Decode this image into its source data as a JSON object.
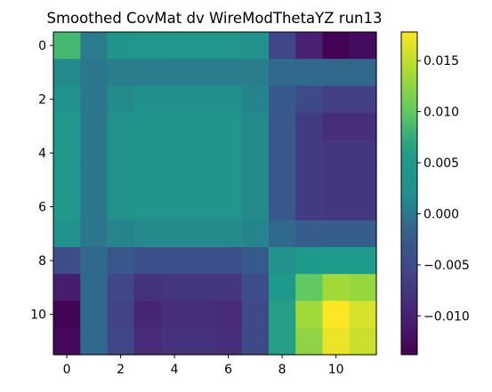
{
  "chart_data": {
    "type": "heatmap",
    "title": "Smoothed CovMat dv WireModThetaYZ run13",
    "xlabel": "",
    "ylabel": "",
    "x_ticks": [
      "0",
      "2",
      "4",
      "6",
      "8",
      "10"
    ],
    "y_ticks": [
      "0",
      "2",
      "4",
      "6",
      "8",
      "10"
    ],
    "colorbar_ticks": [
      "0.015",
      "0.010",
      "0.005",
      "0.000",
      "−0.005",
      "−0.010"
    ],
    "colorbar_tick_values": [
      0.015,
      0.01,
      0.005,
      0.0,
      -0.005,
      -0.01
    ],
    "vmin": -0.0138,
    "vmax": 0.0178,
    "colormap": "viridis",
    "values": [
      [
        0.0085,
        0.0005,
        0.0035,
        0.005,
        0.0045,
        0.0045,
        0.0045,
        0.0025,
        -0.0055,
        -0.01,
        -0.0135,
        -0.0125
      ],
      [
        0.0015,
        0.0,
        0.0005,
        0.0005,
        0.0005,
        0.0005,
        0.0005,
        0.0005,
        -0.001,
        -0.001,
        -0.001,
        -0.001
      ],
      [
        0.003,
        0.0,
        0.0015,
        0.002,
        0.002,
        0.002,
        0.002,
        0.001,
        -0.0025,
        -0.005,
        -0.0065,
        -0.0065
      ],
      [
        0.0045,
        0.0,
        0.0025,
        0.0035,
        0.0035,
        0.0035,
        0.0035,
        0.0015,
        -0.003,
        -0.007,
        -0.0085,
        -0.0085
      ],
      [
        0.005,
        0.0,
        0.0025,
        0.0035,
        0.0035,
        0.0035,
        0.0035,
        0.0015,
        -0.003,
        -0.007,
        -0.0075,
        -0.0075
      ],
      [
        0.005,
        0.0,
        0.0025,
        0.0035,
        0.0035,
        0.0035,
        0.0035,
        0.0015,
        -0.003,
        -0.007,
        -0.0075,
        -0.0075
      ],
      [
        0.005,
        0.0,
        0.0025,
        0.0035,
        0.0035,
        0.0035,
        0.0035,
        0.0015,
        -0.003,
        -0.007,
        -0.0075,
        -0.0075
      ],
      [
        0.0025,
        0.0,
        0.001,
        0.0015,
        0.0015,
        0.0015,
        0.0015,
        0.001,
        -0.001,
        -0.002,
        -0.002,
        -0.002
      ],
      [
        -0.0045,
        -0.001,
        -0.003,
        -0.004,
        -0.004,
        -0.004,
        -0.004,
        -0.0025,
        0.0025,
        0.0055,
        0.006,
        0.006
      ],
      [
        -0.0105,
        -0.001,
        -0.0055,
        -0.008,
        -0.0075,
        -0.0075,
        -0.0075,
        -0.0045,
        0.0055,
        0.01,
        0.0135,
        0.013
      ],
      [
        -0.0135,
        -0.001,
        -0.006,
        -0.0095,
        -0.0085,
        -0.0085,
        -0.009,
        -0.005,
        0.0065,
        0.0135,
        0.0178,
        0.016
      ],
      [
        -0.013,
        -0.001,
        -0.0055,
        -0.009,
        -0.008,
        -0.008,
        -0.0085,
        -0.005,
        0.0065,
        0.0125,
        0.017,
        0.0155
      ]
    ]
  }
}
